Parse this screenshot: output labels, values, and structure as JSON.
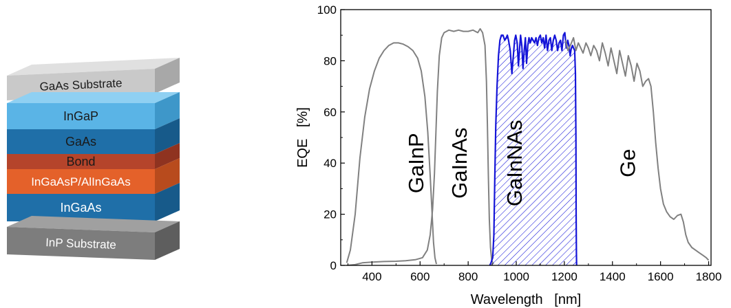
{
  "layer_stack": {
    "layers": [
      {
        "label": "GaAs Substrate",
        "face": "#c9c9c9",
        "top": "#e0e0e0",
        "side": "#a8a8a8",
        "text": "#1a1a1a"
      },
      {
        "label": "InGaP",
        "face": "#5ab4e6",
        "top": "#8fd0f2",
        "side": "#3e97c9",
        "text": "#1a1a1a"
      },
      {
        "label": "GaAs",
        "face": "#1f6fa8",
        "top": "#3a88bf",
        "side": "#175a8a",
        "text": "#1a1a1a"
      },
      {
        "label": "Bond",
        "face": "#b5442b",
        "top": "#c8644a",
        "side": "#8f3320",
        "text": "#1a1a1a"
      },
      {
        "label": "InGaAsP/AlInGaAs",
        "face": "#e4612a",
        "top": "#ee8355",
        "side": "#b84b1d",
        "text": "#ffffff"
      },
      {
        "label": "InGaAs",
        "face": "#1f6fa8",
        "top": "#3a88bf",
        "side": "#175a8a",
        "text": "#ffffff"
      },
      {
        "label": "InP Substrate",
        "face": "#7d7d7d",
        "top": "#a0a0a0",
        "side": "#5e5e5e",
        "text": "#ffffff"
      }
    ]
  },
  "chart_data": {
    "type": "line",
    "xlabel": "Wavelength   [nm]",
    "ylabel": "EQE   [%]",
    "xlim": [
      270,
      1810
    ],
    "ylim": [
      0,
      100
    ],
    "xticks": [
      400,
      600,
      800,
      1000,
      1200,
      1400,
      1600,
      1800
    ],
    "yticks": [
      0,
      20,
      40,
      60,
      80,
      100
    ],
    "grid": false,
    "series": [
      {
        "name": "GaInP",
        "color": "#808080",
        "label_x": 590,
        "label_y": 40,
        "points": [
          [
            295,
            1
          ],
          [
            310,
            6
          ],
          [
            330,
            20
          ],
          [
            350,
            42
          ],
          [
            370,
            58
          ],
          [
            390,
            69
          ],
          [
            410,
            76
          ],
          [
            430,
            81
          ],
          [
            450,
            84
          ],
          [
            470,
            86
          ],
          [
            490,
            87
          ],
          [
            510,
            87
          ],
          [
            530,
            86.5
          ],
          [
            550,
            85.5
          ],
          [
            570,
            84
          ],
          [
            590,
            81
          ],
          [
            605,
            76
          ],
          [
            620,
            66
          ],
          [
            632,
            52
          ],
          [
            642,
            35
          ],
          [
            650,
            20
          ],
          [
            656,
            9
          ],
          [
            662,
            3
          ],
          [
            668,
            0.5
          ]
        ]
      },
      {
        "name": "GaInAs",
        "color": "#808080",
        "label_x": 770,
        "label_y": 40,
        "points": [
          [
            295,
            0
          ],
          [
            330,
            0.3
          ],
          [
            360,
            1
          ],
          [
            400,
            1.3
          ],
          [
            450,
            1.5
          ],
          [
            500,
            1.6
          ],
          [
            540,
            1.8
          ],
          [
            580,
            2.2
          ],
          [
            610,
            3
          ],
          [
            630,
            6
          ],
          [
            642,
            12
          ],
          [
            652,
            22
          ],
          [
            660,
            36
          ],
          [
            666,
            52
          ],
          [
            672,
            68
          ],
          [
            680,
            82
          ],
          [
            690,
            89
          ],
          [
            700,
            91
          ],
          [
            720,
            92
          ],
          [
            740,
            91.5
          ],
          [
            760,
            92
          ],
          [
            780,
            91.5
          ],
          [
            800,
            91.5
          ],
          [
            820,
            92
          ],
          [
            840,
            91
          ],
          [
            850,
            92.5
          ],
          [
            860,
            91
          ],
          [
            870,
            86
          ],
          [
            876,
            72
          ],
          [
            880,
            55
          ],
          [
            884,
            35
          ],
          [
            888,
            18
          ],
          [
            893,
            7
          ],
          [
            898,
            2
          ],
          [
            905,
            0.5
          ]
        ]
      },
      {
        "name": "GaInNAs",
        "color": "#1414d8",
        "hatched": true,
        "label_x": 1000,
        "label_y": 40,
        "points": [
          [
            890,
            0
          ],
          [
            895,
            1
          ],
          [
            902,
            3
          ],
          [
            907,
            12
          ],
          [
            911,
            35
          ],
          [
            915,
            55
          ],
          [
            920,
            70
          ],
          [
            926,
            82
          ],
          [
            932,
            88
          ],
          [
            938,
            90
          ],
          [
            945,
            90
          ],
          [
            952,
            88
          ],
          [
            958,
            89
          ],
          [
            963,
            90
          ],
          [
            968,
            88
          ],
          [
            975,
            84
          ],
          [
            982,
            75
          ],
          [
            988,
            82
          ],
          [
            993,
            88
          ],
          [
            998,
            90
          ],
          [
            1004,
            87
          ],
          [
            1009,
            78
          ],
          [
            1014,
            85
          ],
          [
            1018,
            90
          ],
          [
            1023,
            86
          ],
          [
            1028,
            77
          ],
          [
            1033,
            84
          ],
          [
            1038,
            89
          ],
          [
            1043,
            79
          ],
          [
            1048,
            86
          ],
          [
            1053,
            89
          ],
          [
            1058,
            87
          ],
          [
            1064,
            89
          ],
          [
            1070,
            88
          ],
          [
            1076,
            87
          ],
          [
            1082,
            89
          ],
          [
            1088,
            86
          ],
          [
            1094,
            89
          ],
          [
            1100,
            90
          ],
          [
            1106,
            87
          ],
          [
            1112,
            89
          ],
          [
            1118,
            85
          ],
          [
            1124,
            90
          ],
          [
            1130,
            84
          ],
          [
            1136,
            88
          ],
          [
            1142,
            89
          ],
          [
            1148,
            84
          ],
          [
            1154,
            88
          ],
          [
            1160,
            90
          ],
          [
            1166,
            88
          ],
          [
            1172,
            84
          ],
          [
            1178,
            87
          ],
          [
            1184,
            88
          ],
          [
            1190,
            84
          ],
          [
            1196,
            90
          ],
          [
            1202,
            91
          ],
          [
            1208,
            85
          ],
          [
            1214,
            88
          ],
          [
            1219,
            86
          ],
          [
            1224,
            82
          ],
          [
            1229,
            85
          ],
          [
            1234,
            86
          ],
          [
            1238,
            85
          ],
          [
            1243,
            84
          ],
          [
            1246,
            75
          ],
          [
            1248,
            50
          ],
          [
            1249,
            20
          ],
          [
            1250,
            5
          ],
          [
            1251,
            0
          ]
        ]
      },
      {
        "name": "Ge",
        "color": "#808080",
        "label_x": 1470,
        "label_y": 40,
        "points": [
          [
            1205,
            88
          ],
          [
            1215,
            84
          ],
          [
            1225,
            86
          ],
          [
            1238,
            89
          ],
          [
            1248,
            84
          ],
          [
            1258,
            87
          ],
          [
            1268,
            85
          ],
          [
            1278,
            83
          ],
          [
            1290,
            87
          ],
          [
            1300,
            85
          ],
          [
            1310,
            82
          ],
          [
            1322,
            86
          ],
          [
            1334,
            84
          ],
          [
            1346,
            80
          ],
          [
            1358,
            87
          ],
          [
            1370,
            83
          ],
          [
            1382,
            78
          ],
          [
            1394,
            85
          ],
          [
            1406,
            80
          ],
          [
            1418,
            75
          ],
          [
            1430,
            84
          ],
          [
            1442,
            79
          ],
          [
            1454,
            74
          ],
          [
            1466,
            82
          ],
          [
            1478,
            78
          ],
          [
            1490,
            72
          ],
          [
            1502,
            79
          ],
          [
            1514,
            76
          ],
          [
            1526,
            70
          ],
          [
            1538,
            72
          ],
          [
            1550,
            73
          ],
          [
            1560,
            70
          ],
          [
            1570,
            60
          ],
          [
            1580,
            48
          ],
          [
            1590,
            38
          ],
          [
            1600,
            30
          ],
          [
            1612,
            24
          ],
          [
            1625,
            21
          ],
          [
            1640,
            19
          ],
          [
            1655,
            18
          ],
          [
            1670,
            19.5
          ],
          [
            1685,
            20
          ],
          [
            1695,
            17
          ],
          [
            1705,
            12
          ],
          [
            1715,
            9
          ],
          [
            1730,
            7
          ],
          [
            1745,
            6
          ],
          [
            1760,
            5
          ],
          [
            1775,
            4
          ],
          [
            1790,
            3
          ],
          [
            1800,
            2
          ]
        ]
      }
    ]
  }
}
